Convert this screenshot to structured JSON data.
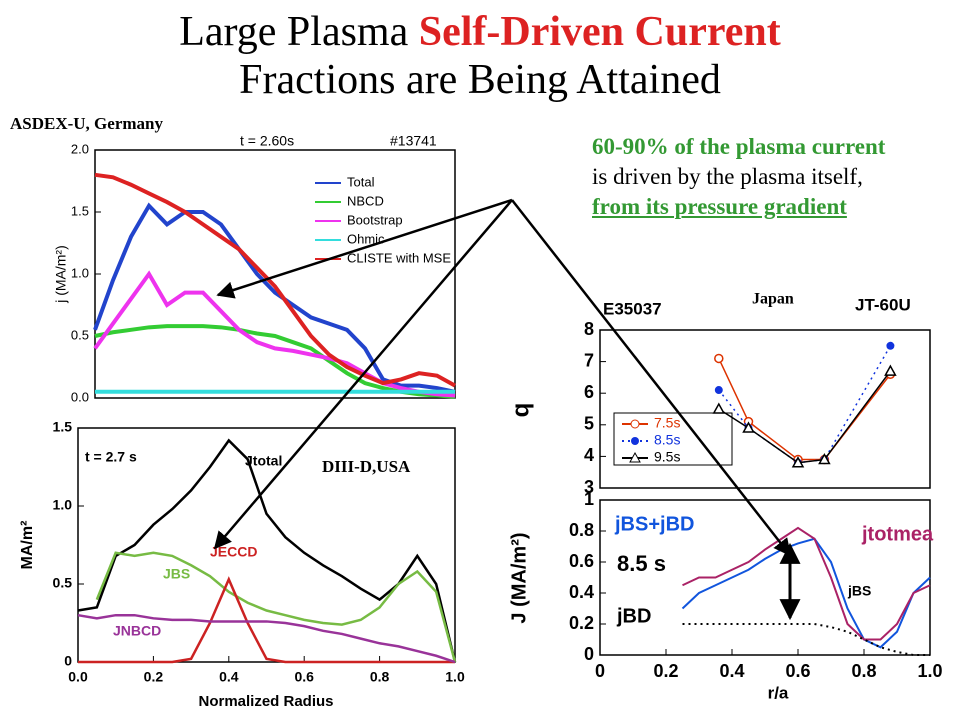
{
  "title": {
    "line1_start": "Large Plasma ",
    "highlight": "Self-Driven Current",
    "line2": "Fractions are Being Attained"
  },
  "labels": {
    "asdex": "ASDEX-U, Germany",
    "diiid": "DIII-D,USA",
    "japan": "Japan"
  },
  "note": {
    "part1": "60-90% of the plasma current",
    "part2": " is driven by the plasma itself, ",
    "part3": "from its pressure gradient"
  },
  "chart_data": [
    {
      "type": "line",
      "ylabel": "j (MA/m²)",
      "annotations": [
        "t = 2.60s",
        "#13741"
      ],
      "x": [
        0,
        0.05,
        0.1,
        0.15,
        0.2,
        0.25,
        0.3,
        0.35,
        0.4,
        0.45,
        0.5,
        0.55,
        0.6,
        0.65,
        0.7,
        0.75,
        0.8,
        0.85,
        0.9,
        0.95,
        1.0
      ],
      "xlim": [
        0,
        1
      ],
      "ylim": [
        0,
        2
      ],
      "yticks": [
        {
          "value": 0,
          "label": "0.0"
        },
        0.5,
        {
          "value": 1,
          "label": "1.0"
        },
        1.5,
        {
          "value": 2,
          "label": "2.0"
        }
      ],
      "legend": "upper right",
      "series": [
        {
          "name": "Total",
          "color": "#2244cc",
          "values": [
            0.55,
            0.95,
            1.3,
            1.55,
            1.4,
            1.5,
            1.5,
            1.4,
            1.2,
            1.0,
            0.85,
            0.75,
            0.65,
            0.6,
            0.55,
            0.4,
            0.15,
            0.1,
            0.1,
            0.08,
            0.05
          ]
        },
        {
          "name": "NBCD",
          "color": "#33cc33",
          "values": [
            0.5,
            0.53,
            0.55,
            0.57,
            0.58,
            0.58,
            0.58,
            0.57,
            0.55,
            0.52,
            0.5,
            0.45,
            0.4,
            0.3,
            0.2,
            0.12,
            0.08,
            0.05,
            0.03,
            0.02,
            0.01
          ]
        },
        {
          "name": "Bootstrap",
          "color": "#ee33ee",
          "values": [
            0.4,
            0.6,
            0.8,
            1.0,
            0.75,
            0.85,
            0.85,
            0.7,
            0.55,
            0.45,
            0.4,
            0.38,
            0.35,
            0.32,
            0.28,
            0.2,
            0.12,
            0.08,
            0.05,
            0.03,
            0.02
          ]
        },
        {
          "name": "Ohmic",
          "color": "#33dddd",
          "values": [
            0.05,
            0.05,
            0.05,
            0.05,
            0.05,
            0.05,
            0.05,
            0.05,
            0.05,
            0.05,
            0.05,
            0.05,
            0.05,
            0.05,
            0.05,
            0.05,
            0.05,
            0.05,
            0.05,
            0.05,
            0.05
          ]
        },
        {
          "name": "CLISTE with MSE",
          "color": "#dd2222",
          "values": [
            1.8,
            1.78,
            1.72,
            1.65,
            1.58,
            1.5,
            1.4,
            1.3,
            1.2,
            1.05,
            0.9,
            0.7,
            0.5,
            0.35,
            0.25,
            0.18,
            0.12,
            0.15,
            0.2,
            0.18,
            0.1
          ]
        }
      ]
    },
    {
      "type": "line",
      "xlabel": "Normalized Radius",
      "ylabel": "MA/m²",
      "annotations": [
        "t = 2.7 s"
      ],
      "x": [
        0,
        0.05,
        0.1,
        0.15,
        0.2,
        0.25,
        0.3,
        0.35,
        0.4,
        0.45,
        0.5,
        0.55,
        0.6,
        0.65,
        0.7,
        0.75,
        0.8,
        0.85,
        0.9,
        0.95,
        1.0
      ],
      "xlim": [
        0,
        1
      ],
      "ylim": [
        0,
        1.5
      ],
      "xticks": [
        {
          "value": 0,
          "label": "0.0"
        },
        0.2,
        0.4,
        0.6,
        0.8,
        {
          "value": 1,
          "label": "1.0"
        }
      ],
      "yticks": [
        0,
        0.5,
        {
          "value": 1,
          "label": "1.0"
        },
        1.5
      ],
      "series": [
        {
          "name": "Jtotal",
          "color": "#000000",
          "values": [
            0.33,
            0.35,
            0.68,
            0.75,
            0.88,
            0.98,
            1.1,
            1.25,
            1.42,
            1.3,
            0.95,
            0.8,
            0.7,
            0.62,
            0.55,
            0.47,
            0.4,
            0.5,
            0.68,
            0.5,
            0
          ]
        },
        {
          "name": "JBS",
          "color": "#77bb44",
          "values": [
            null,
            0.4,
            0.7,
            0.68,
            0.7,
            0.68,
            0.62,
            0.55,
            0.45,
            0.38,
            0.33,
            0.3,
            0.27,
            0.25,
            0.24,
            0.27,
            0.35,
            0.5,
            0.58,
            0.45,
            0
          ]
        },
        {
          "name": "JECCD",
          "color": "#cc2222",
          "values": [
            0,
            0,
            0,
            0,
            0,
            0,
            0.02,
            0.25,
            0.53,
            0.25,
            0.02,
            0,
            0,
            0,
            0,
            0,
            0,
            0,
            0,
            0,
            0
          ]
        },
        {
          "name": "JNBCD",
          "color": "#993399",
          "values": [
            0.3,
            0.28,
            0.3,
            0.3,
            0.28,
            0.27,
            0.27,
            0.26,
            0.26,
            0.26,
            0.26,
            0.25,
            0.23,
            0.2,
            0.18,
            0.15,
            0.12,
            0.1,
            0.07,
            0.04,
            0
          ]
        }
      ]
    },
    {
      "type": "line",
      "ylabel": "q",
      "annotations": [
        "E35037",
        "JT-60U"
      ],
      "x": [
        0.36,
        0.45,
        0.6,
        0.68,
        0.88
      ],
      "xlim": [
        0,
        1
      ],
      "ylim": [
        3,
        8
      ],
      "yticks": [
        3,
        4,
        5,
        6,
        7,
        8
      ],
      "legend": "center left",
      "series": [
        {
          "name": "7.5s",
          "color": "#dd3300",
          "marker": "circle",
          "values": [
            7.1,
            5.1,
            3.9,
            3.9,
            6.6
          ]
        },
        {
          "name": "8.5s",
          "color": "#1133dd",
          "marker": "dot",
          "dash": "dotted",
          "values": [
            6.1,
            4.9,
            3.8,
            3.9,
            7.5
          ]
        },
        {
          "name": "9.5s",
          "color": "#000000",
          "marker": "triangle",
          "values": [
            5.5,
            4.9,
            3.8,
            3.9,
            6.7
          ]
        }
      ]
    },
    {
      "type": "line",
      "xlabel": "r/a",
      "ylabel": "J (MA/m²)",
      "annotations": [
        "8.5 s",
        "jBS"
      ],
      "x": [
        0.25,
        0.3,
        0.35,
        0.4,
        0.45,
        0.5,
        0.55,
        0.6,
        0.65,
        0.7,
        0.75,
        0.8,
        0.85,
        0.9,
        0.95,
        1.0
      ],
      "xlim": [
        0,
        1
      ],
      "ylim": [
        0,
        1
      ],
      "xticks": [
        0,
        0.2,
        0.4,
        0.6,
        0.8,
        {
          "value": 1,
          "label": "1.0"
        }
      ],
      "yticks": [
        0,
        0.2,
        0.4,
        0.6,
        0.8,
        1
      ],
      "series": [
        {
          "name": "jBS+jBD",
          "color": "#1155dd",
          "values": [
            0.3,
            0.4,
            0.45,
            0.5,
            0.55,
            0.62,
            0.68,
            0.72,
            0.75,
            0.6,
            0.3,
            0.1,
            0.05,
            0.15,
            0.4,
            0.5
          ]
        },
        {
          "name": "jtotmea",
          "color": "#aa2266",
          "values": [
            0.45,
            0.5,
            0.5,
            0.55,
            0.6,
            0.68,
            0.75,
            0.82,
            0.75,
            0.5,
            0.2,
            0.1,
            0.1,
            0.2,
            0.4,
            0.45
          ]
        },
        {
          "name": "jBD",
          "color": "#000000",
          "dash": "dotted",
          "values": [
            0.2,
            0.2,
            0.2,
            0.2,
            0.2,
            0.2,
            0.2,
            0.2,
            0.2,
            0.18,
            0.15,
            0.1,
            0.05,
            0.02,
            0,
            0
          ]
        }
      ]
    }
  ]
}
